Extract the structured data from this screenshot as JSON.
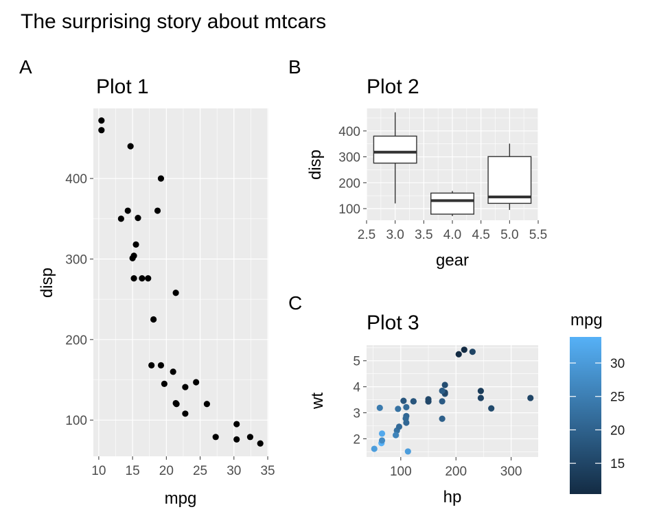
{
  "figure": {
    "title": "The surprising story about mtcars",
    "tags": [
      "A",
      "B",
      "C"
    ]
  },
  "chart_data": [
    {
      "type": "scatter",
      "tag": "A",
      "title": "Plot 1",
      "xlabel": "mpg",
      "ylabel": "disp",
      "xlim": [
        9.2,
        35.1
      ],
      "ylim": [
        55,
        487
      ],
      "xticks": [
        10,
        15,
        20,
        25,
        30,
        35
      ],
      "yticks": [
        100,
        200,
        300,
        400
      ],
      "grid": true,
      "point_color": "#000000",
      "points": [
        [
          10.4,
          472
        ],
        [
          10.4,
          460
        ],
        [
          14.7,
          440
        ],
        [
          19.2,
          400
        ],
        [
          14.3,
          360
        ],
        [
          18.7,
          360
        ],
        [
          13.3,
          350
        ],
        [
          15.8,
          351
        ],
        [
          15.5,
          318
        ],
        [
          15.2,
          304
        ],
        [
          15.0,
          301
        ],
        [
          15.2,
          276
        ],
        [
          16.4,
          276
        ],
        [
          17.3,
          276
        ],
        [
          21.4,
          258
        ],
        [
          18.1,
          225
        ],
        [
          17.8,
          168
        ],
        [
          19.2,
          168
        ],
        [
          21.0,
          160
        ],
        [
          24.4,
          147
        ],
        [
          19.7,
          145
        ],
        [
          22.8,
          141
        ],
        [
          21.5,
          120
        ],
        [
          21.4,
          121
        ],
        [
          26.0,
          120
        ],
        [
          22.8,
          108
        ],
        [
          30.4,
          95
        ],
        [
          27.3,
          79
        ],
        [
          30.4,
          76
        ],
        [
          32.4,
          79
        ],
        [
          33.9,
          71
        ]
      ]
    },
    {
      "type": "box",
      "tag": "B",
      "title": "Plot 2",
      "xlabel": "gear",
      "ylabel": "disp",
      "xlim": [
        2.5,
        5.5
      ],
      "ylim": [
        55,
        487
      ],
      "xticks": [
        "2.5",
        "3.0",
        "3.5",
        "4.0",
        "4.5",
        "5.0",
        "5.5"
      ],
      "yticks": [
        100,
        200,
        300,
        400
      ],
      "grid": true,
      "boxes": [
        {
          "x": 3,
          "min": 120.1,
          "q1": 275.8,
          "median": 318,
          "q3": 380,
          "max": 472
        },
        {
          "x": 4,
          "min": 71.1,
          "q1": 78.7,
          "median": 130.9,
          "q3": 160,
          "max": 168
        },
        {
          "x": 5,
          "min": 95.1,
          "q1": 120.3,
          "median": 145,
          "q3": 301,
          "max": 351
        }
      ]
    },
    {
      "type": "scatter",
      "tag": "C",
      "title": "Plot 3",
      "xlabel": "hp",
      "ylabel": "wt",
      "xlim": [
        38,
        349
      ],
      "ylim": [
        1.3,
        5.6
      ],
      "xticks": [
        100,
        200,
        300
      ],
      "yticks": [
        2,
        3,
        4,
        5
      ],
      "grid": true,
      "legend": {
        "title": "mpg",
        "ticks": [
          15,
          20,
          25,
          30
        ],
        "range": [
          10.4,
          33.9
        ],
        "low_color": "#132B43",
        "high_color": "#56B1F7",
        "position": "right"
      },
      "points": [
        [
          110,
          2.62,
          21.0
        ],
        [
          110,
          2.875,
          21.0
        ],
        [
          93,
          2.32,
          22.8
        ],
        [
          110,
          3.215,
          21.4
        ],
        [
          175,
          3.44,
          18.7
        ],
        [
          105,
          3.46,
          18.1
        ],
        [
          245,
          3.57,
          14.3
        ],
        [
          62,
          3.19,
          24.4
        ],
        [
          95,
          3.15,
          22.8
        ],
        [
          123,
          3.44,
          19.2
        ],
        [
          123,
          3.44,
          17.8
        ],
        [
          180,
          4.07,
          16.4
        ],
        [
          180,
          3.73,
          17.3
        ],
        [
          180,
          3.78,
          15.2
        ],
        [
          205,
          5.25,
          10.4
        ],
        [
          215,
          5.424,
          10.4
        ],
        [
          230,
          5.345,
          14.7
        ],
        [
          66,
          2.2,
          32.4
        ],
        [
          52,
          1.615,
          30.4
        ],
        [
          65,
          1.835,
          33.9
        ],
        [
          97,
          2.465,
          21.5
        ],
        [
          150,
          3.52,
          15.5
        ],
        [
          150,
          3.435,
          15.2
        ],
        [
          245,
          3.84,
          13.3
        ],
        [
          175,
          3.845,
          19.2
        ],
        [
          66,
          1.935,
          27.3
        ],
        [
          91,
          2.14,
          26.0
        ],
        [
          113,
          1.513,
          30.4
        ],
        [
          264,
          3.17,
          15.8
        ],
        [
          175,
          2.77,
          19.7
        ],
        [
          335,
          3.57,
          15.0
        ],
        [
          109,
          2.78,
          21.4
        ]
      ]
    }
  ]
}
